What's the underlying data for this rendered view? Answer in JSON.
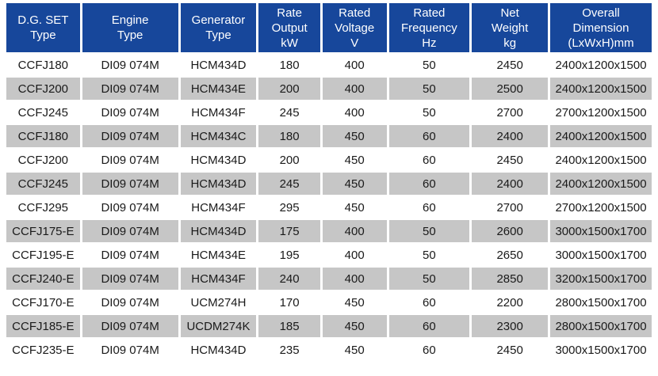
{
  "colors": {
    "page_bg": "#ffffff",
    "header_bg": "#17479B",
    "header_text": "#ffffff",
    "row_bg": "#ffffff",
    "row_alt_bg": "#c6c6c6",
    "cell_text": "#1a1a1a"
  },
  "table": {
    "columns": [
      {
        "id": "dg-set-type",
        "label": "D.G. SET\nType"
      },
      {
        "id": "engine-type",
        "label": "Engine\nType"
      },
      {
        "id": "generator-type",
        "label": "Generator\nType"
      },
      {
        "id": "rate-output-kw",
        "label": "Rate\nOutput\nkW"
      },
      {
        "id": "rated-voltage-v",
        "label": "Rated\nVoltage\nV"
      },
      {
        "id": "rated-frequency-hz",
        "label": "Rated\nFrequency\nHz"
      },
      {
        "id": "net-weight-kg",
        "label": "Net\nWeight\nkg"
      },
      {
        "id": "overall-dimension",
        "label": "Overall\nDimension\n(LxWxH)mm"
      }
    ],
    "rows": [
      [
        "CCFJ180",
        "DI09 074M",
        "HCM434D",
        "180",
        "400",
        "50",
        "2450",
        "2400x1200x1500"
      ],
      [
        "CCFJ200",
        "DI09 074M",
        "HCM434E",
        "200",
        "400",
        "50",
        "2500",
        "2400x1200x1500"
      ],
      [
        "CCFJ245",
        "DI09 074M",
        "HCM434F",
        "245",
        "400",
        "50",
        "2700",
        "2700x1200x1500"
      ],
      [
        "CCFJ180",
        "DI09 074M",
        "HCM434C",
        "180",
        "450",
        "60",
        "2400",
        "2400x1200x1500"
      ],
      [
        "CCFJ200",
        "DI09 074M",
        "HCM434D",
        "200",
        "450",
        "60",
        "2450",
        "2400x1200x1500"
      ],
      [
        "CCFJ245",
        "DI09 074M",
        "HCM434D",
        "245",
        "450",
        "60",
        "2400",
        "2400x1200x1500"
      ],
      [
        "CCFJ295",
        "DI09 074M",
        "HCM434F",
        "295",
        "450",
        "60",
        "2700",
        "2700x1200x1500"
      ],
      [
        "CCFJ175-E",
        "DI09 074M",
        "HCM434D",
        "175",
        "400",
        "50",
        "2600",
        "3000x1500x1700"
      ],
      [
        "CCFJ195-E",
        "DI09 074M",
        "HCM434E",
        "195",
        "400",
        "50",
        "2650",
        "3000x1500x1700"
      ],
      [
        "CCFJ240-E",
        "DI09 074M",
        "HCM434F",
        "240",
        "400",
        "50",
        "2850",
        "3200x1500x1700"
      ],
      [
        "CCFJ170-E",
        "DI09 074M",
        "UCM274H",
        "170",
        "450",
        "60",
        "2200",
        "2800x1500x1700"
      ],
      [
        "CCFJ185-E",
        "DI09 074M",
        "UCDM274K",
        "185",
        "450",
        "60",
        "2300",
        "2800x1500x1700"
      ],
      [
        "CCFJ235-E",
        "DI09 074M",
        "HCM434D",
        "235",
        "450",
        "60",
        "2450",
        "3000x1500x1700"
      ]
    ]
  }
}
